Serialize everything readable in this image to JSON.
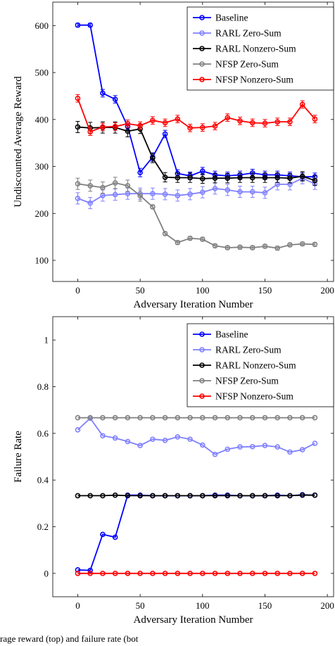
{
  "chart_data": [
    {
      "type": "line",
      "xlabel": "Adversary Iteration Number",
      "ylabel": "Undiscounted Average Reward",
      "xlim": [
        -20,
        205
      ],
      "ylim": [
        55,
        650
      ],
      "xticks": [
        0,
        50,
        100,
        150,
        200
      ],
      "yticks": [
        100,
        200,
        300,
        400,
        500,
        600
      ],
      "grid": false,
      "legend": "top-right",
      "error_bars": true,
      "series": [
        {
          "name": "Baseline",
          "color": "#0000ff",
          "x": [
            0,
            10,
            20,
            30,
            40,
            50,
            60,
            70,
            80,
            90,
            100,
            110,
            120,
            130,
            140,
            150,
            160,
            170,
            180,
            190
          ],
          "y": [
            601,
            601,
            456,
            443,
            385,
            287,
            320,
            369,
            285,
            280,
            290,
            282,
            280,
            282,
            286,
            282,
            282,
            280,
            278,
            278
          ],
          "err": [
            4,
            4,
            8,
            8,
            10,
            9,
            9,
            8,
            8,
            8,
            8,
            8,
            8,
            8,
            8,
            8,
            8,
            8,
            8,
            8
          ]
        },
        {
          "name": "RARL Zero-Sum",
          "color": "#8080ff",
          "x": [
            0,
            10,
            20,
            30,
            40,
            50,
            60,
            70,
            80,
            90,
            100,
            110,
            120,
            130,
            140,
            150,
            160,
            170,
            180,
            190
          ],
          "y": [
            232,
            222,
            238,
            240,
            242,
            242,
            242,
            241,
            238,
            241,
            245,
            253,
            250,
            246,
            246,
            244,
            262,
            262,
            275,
            263
          ],
          "err": [
            12,
            12,
            12,
            12,
            12,
            12,
            12,
            12,
            12,
            12,
            12,
            12,
            12,
            12,
            12,
            12,
            12,
            12,
            12,
            12
          ]
        },
        {
          "name": "RARL Nonzero-Sum",
          "color": "#000000",
          "x": [
            0,
            10,
            20,
            30,
            40,
            50,
            60,
            70,
            80,
            90,
            100,
            110,
            120,
            130,
            140,
            150,
            160,
            170,
            180,
            190
          ],
          "y": [
            384,
            382,
            383,
            383,
            375,
            380,
            318,
            277,
            276,
            276,
            274,
            275,
            275,
            276,
            276,
            276,
            276,
            275,
            279,
            270
          ],
          "err": [
            12,
            12,
            12,
            12,
            12,
            10,
            10,
            10,
            10,
            10,
            10,
            10,
            10,
            10,
            10,
            10,
            10,
            10,
            10,
            10
          ]
        },
        {
          "name": "NFSP Zero-Sum",
          "color": "#808080",
          "x": [
            0,
            10,
            20,
            30,
            40,
            50,
            60,
            70,
            80,
            90,
            100,
            110,
            120,
            130,
            140,
            150,
            160,
            170,
            180,
            190
          ],
          "y": [
            263,
            259,
            255,
            265,
            259,
            238,
            214,
            157,
            138,
            147,
            145,
            131,
            127,
            128,
            127,
            130,
            126,
            133,
            135,
            134
          ],
          "err": [
            12,
            12,
            12,
            12,
            12,
            12,
            4,
            4,
            4,
            4,
            4,
            4,
            4,
            4,
            4,
            4,
            4,
            4,
            4,
            4
          ]
        },
        {
          "name": "NFSP Nonzero-Sum",
          "color": "#ff0000",
          "x": [
            0,
            10,
            20,
            30,
            40,
            50,
            60,
            70,
            80,
            90,
            100,
            110,
            120,
            130,
            140,
            150,
            160,
            170,
            180,
            190
          ],
          "y": [
            445,
            374,
            384,
            385,
            391,
            387,
            398,
            393,
            401,
            382,
            383,
            386,
            404,
            397,
            393,
            392,
            395,
            395,
            432,
            401
          ],
          "err": [
            8,
            8,
            8,
            8,
            8,
            8,
            8,
            8,
            8,
            8,
            8,
            8,
            8,
            8,
            8,
            8,
            8,
            8,
            8,
            8
          ]
        }
      ]
    },
    {
      "type": "line",
      "xlabel": "Adversary Iteration Number",
      "ylabel": "Failure Rate",
      "xlim": [
        -20,
        205
      ],
      "ylim": [
        -0.1,
        1.1
      ],
      "xticks": [
        0,
        50,
        100,
        150,
        200
      ],
      "yticks": [
        0,
        0.2,
        0.4,
        0.6,
        0.8,
        1
      ],
      "ytick_labels": [
        "0",
        "0.2",
        "0.4",
        "0.6",
        "0.8",
        "1"
      ],
      "grid": false,
      "legend": "top-right",
      "error_bars": false,
      "series": [
        {
          "name": "Baseline",
          "color": "#0000ff",
          "x": [
            0,
            10,
            20,
            30,
            40,
            50,
            60,
            70,
            80,
            90,
            100,
            110,
            120,
            130,
            140,
            150,
            160,
            170,
            180,
            190
          ],
          "y": [
            0.015,
            0.013,
            0.167,
            0.155,
            0.335,
            0.335,
            0.333,
            0.333,
            0.333,
            0.333,
            0.333,
            0.335,
            0.335,
            0.333,
            0.333,
            0.333,
            0.335,
            0.333,
            0.337,
            0.335
          ]
        },
        {
          "name": "RARL Zero-Sum",
          "color": "#8080ff",
          "x": [
            0,
            10,
            20,
            30,
            40,
            50,
            60,
            70,
            80,
            90,
            100,
            110,
            120,
            130,
            140,
            150,
            160,
            170,
            180,
            190
          ],
          "y": [
            0.615,
            0.665,
            0.59,
            0.58,
            0.565,
            0.548,
            0.575,
            0.57,
            0.585,
            0.575,
            0.55,
            0.51,
            0.532,
            0.542,
            0.543,
            0.548,
            0.542,
            0.52,
            0.53,
            0.557
          ]
        },
        {
          "name": "RARL Nonzero-Sum",
          "color": "#000000",
          "x": [
            0,
            10,
            20,
            30,
            40,
            50,
            60,
            70,
            80,
            90,
            100,
            110,
            120,
            130,
            140,
            150,
            160,
            170,
            180,
            190
          ],
          "y": [
            0.333,
            0.333,
            0.333,
            0.335,
            0.333,
            0.333,
            0.333,
            0.333,
            0.333,
            0.333,
            0.333,
            0.333,
            0.333,
            0.333,
            0.333,
            0.333,
            0.333,
            0.333,
            0.335,
            0.335
          ]
        },
        {
          "name": "NFSP Zero-Sum",
          "color": "#808080",
          "x": [
            0,
            10,
            20,
            30,
            40,
            50,
            60,
            70,
            80,
            90,
            100,
            110,
            120,
            130,
            140,
            150,
            160,
            170,
            180,
            190
          ],
          "y": [
            0.667,
            0.667,
            0.667,
            0.667,
            0.667,
            0.667,
            0.667,
            0.667,
            0.667,
            0.667,
            0.667,
            0.667,
            0.667,
            0.667,
            0.667,
            0.667,
            0.667,
            0.667,
            0.667,
            0.667
          ]
        },
        {
          "name": "NFSP Nonzero-Sum",
          "color": "#ff0000",
          "x": [
            0,
            10,
            20,
            30,
            40,
            50,
            60,
            70,
            80,
            90,
            100,
            110,
            120,
            130,
            140,
            150,
            160,
            170,
            180,
            190
          ],
          "y": [
            0,
            0,
            0,
            0,
            0,
            0,
            0,
            0,
            0,
            0,
            0,
            0,
            0,
            0,
            0,
            0,
            0,
            0,
            0,
            0
          ]
        }
      ]
    }
  ],
  "caption_fragment": "rage reward (top) and failure rate (bot"
}
